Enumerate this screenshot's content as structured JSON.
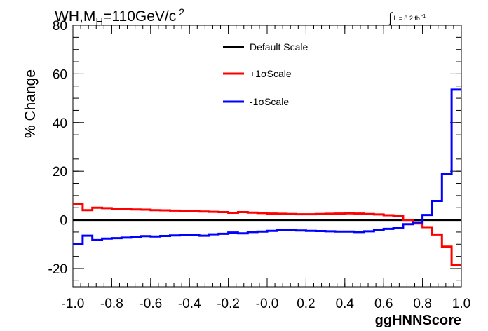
{
  "chart_data": {
    "type": "line",
    "title_main": "WH,M",
    "title_sub": "H",
    "title_rest": "=110GeV/c",
    "title_sup": "2",
    "lumi_integral": "∫",
    "lumi_text": "L = 8.2 fb",
    "lumi_sup": "-1",
    "xlabel": "ggHNNScore",
    "ylabel": "% Change",
    "xlim": [
      -1.0,
      1.0
    ],
    "ylim": [
      -27.5,
      80
    ],
    "x_ticks": [
      {
        "v": -1.0,
        "label": "-1.0"
      },
      {
        "v": -0.8,
        "label": "-0.8"
      },
      {
        "v": -0.6,
        "label": "-0.6"
      },
      {
        "v": -0.4,
        "label": "-0.4"
      },
      {
        "v": -0.2,
        "label": "-0.2"
      },
      {
        "v": 0.0,
        "label": "-0.0"
      },
      {
        "v": 0.2,
        "label": "0.2"
      },
      {
        "v": 0.4,
        "label": "0.4"
      },
      {
        "v": 0.6,
        "label": "0.6"
      },
      {
        "v": 0.8,
        "label": "0.8"
      },
      {
        "v": 1.0,
        "label": "1.0"
      }
    ],
    "y_ticks": [
      {
        "v": -20,
        "label": "-20"
      },
      {
        "v": 0,
        "label": "0"
      },
      {
        "v": 20,
        "label": "20"
      },
      {
        "v": 40,
        "label": "40"
      },
      {
        "v": 60,
        "label": "60"
      },
      {
        "v": 80,
        "label": "80"
      }
    ],
    "bin_edges": [
      -1.0,
      -0.95,
      -0.9,
      -0.85,
      -0.8,
      -0.75,
      -0.7,
      -0.65,
      -0.6,
      -0.55,
      -0.5,
      -0.45,
      -0.4,
      -0.35,
      -0.3,
      -0.25,
      -0.2,
      -0.15,
      -0.1,
      -0.05,
      0.0,
      0.05,
      0.1,
      0.15,
      0.2,
      0.25,
      0.3,
      0.35,
      0.4,
      0.45,
      0.5,
      0.55,
      0.6,
      0.65,
      0.7,
      0.75,
      0.8,
      0.85,
      0.9,
      0.95,
      1.0
    ],
    "series": [
      {
        "name": "Default Scale",
        "color": "#000000",
        "values": [
          0,
          0,
          0,
          0,
          0,
          0,
          0,
          0,
          0,
          0,
          0,
          0,
          0,
          0,
          0,
          0,
          0,
          0,
          0,
          0,
          0,
          0,
          0,
          0,
          0,
          0,
          0,
          0,
          0,
          0,
          0,
          0,
          0,
          0,
          0,
          0,
          0,
          0,
          0,
          0
        ]
      },
      {
        "name": "+1σScale",
        "color": "#ff0000",
        "values": [
          6.5,
          4.0,
          5.0,
          4.8,
          4.6,
          4.4,
          4.3,
          4.2,
          4.0,
          3.9,
          3.8,
          3.7,
          3.6,
          3.4,
          3.3,
          3.2,
          2.9,
          3.2,
          3.0,
          2.8,
          2.6,
          2.5,
          2.4,
          2.3,
          2.3,
          2.4,
          2.5,
          2.6,
          2.7,
          2.6,
          2.4,
          2.2,
          1.9,
          1.6,
          0.0,
          -1.5,
          -3.0,
          -6.0,
          -11.0,
          -18.5
        ]
      },
      {
        "name": "-1σScale",
        "color": "#0000ff",
        "values": [
          -10.0,
          -6.5,
          -8.3,
          -7.7,
          -7.5,
          -7.3,
          -7.1,
          -6.7,
          -6.8,
          -6.6,
          -6.4,
          -6.3,
          -6.1,
          -6.5,
          -5.9,
          -5.7,
          -5.2,
          -5.5,
          -5.0,
          -4.8,
          -4.5,
          -4.3,
          -4.3,
          -4.4,
          -4.5,
          -4.6,
          -4.7,
          -4.8,
          -4.8,
          -5.0,
          -4.7,
          -4.3,
          -3.7,
          -3.2,
          -1.8,
          -1.0,
          2.0,
          7.8,
          19.0,
          53.5
        ]
      }
    ],
    "legend_position": "top-center"
  }
}
